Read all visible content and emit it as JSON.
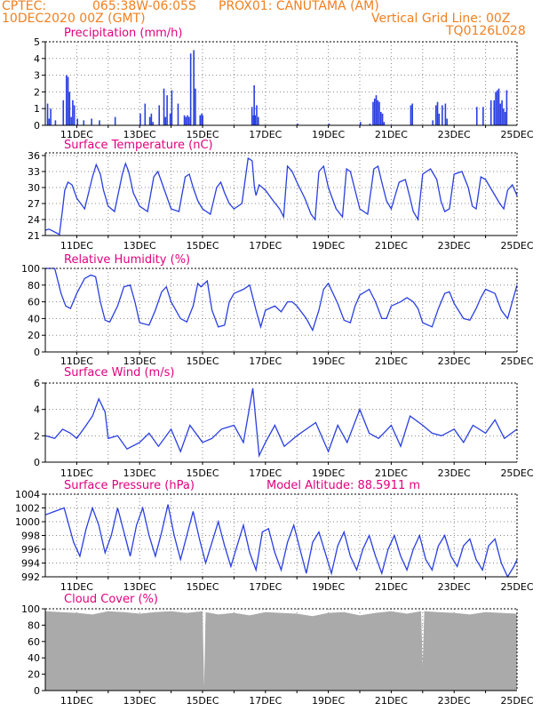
{
  "header": {
    "source": "CPTEC:",
    "coords": "065:38W-06:05S",
    "location": "PROX01: CANUTAMA (AM)",
    "date": "10DEC2020 00Z (GMT)",
    "grid_note": "Vertical Grid Line: 00Z",
    "model": "TQ0126L028"
  },
  "colors": {
    "title": "#e0007f",
    "header": "#f08020",
    "line": "#2a3fe0",
    "bars": "#2a3fe0",
    "cloud": "#aaaaaa"
  },
  "x_axis": {
    "start": "10DEC2020 00Z",
    "end": "25DEC2020 00Z",
    "tick_labels": [
      "11DEC",
      "13DEC",
      "15DEC",
      "17DEC",
      "19DEC",
      "21DEC",
      "23DEC",
      "25DEC"
    ],
    "tick_days": [
      1,
      3,
      5,
      7,
      9,
      11,
      13,
      15
    ],
    "vertical_grid": "00Z"
  },
  "chart_data": [
    {
      "type": "bar",
      "title": "Precipitation (mm/h)",
      "ylim": [
        0,
        5
      ],
      "yticks": [
        0,
        1,
        2,
        3,
        4,
        5
      ],
      "x": [
        0.05,
        0.1,
        0.15,
        0.3,
        0.55,
        0.65,
        0.7,
        0.75,
        0.8,
        0.85,
        0.9,
        1.0,
        1.2,
        1.45,
        1.7,
        2.2,
        3.0,
        3.15,
        3.3,
        3.35,
        3.4,
        3.6,
        3.75,
        3.8,
        3.85,
        3.95,
        4.0,
        4.2,
        4.4,
        4.45,
        4.5,
        4.55,
        4.6,
        4.7,
        4.75,
        4.9,
        4.95,
        4.98,
        6.55,
        6.6,
        6.62,
        6.65,
        6.7,
        6.75,
        8.0,
        9.0,
        10.0,
        10.3,
        10.4,
        10.45,
        10.5,
        10.55,
        10.6,
        10.65,
        10.7,
        10.75,
        11.6,
        11.65,
        12.3,
        12.4,
        12.45,
        12.5,
        12.6,
        12.7,
        12.75,
        13.7,
        13.9,
        14.15,
        14.25,
        14.3,
        14.35,
        14.4,
        14.45,
        14.5,
        14.55,
        14.6,
        14.65
      ],
      "values": [
        1.3,
        0.4,
        1.0,
        0.3,
        1.5,
        3.0,
        2.9,
        2.0,
        0.5,
        1.5,
        1.2,
        0.4,
        0.3,
        0.4,
        0.3,
        0.5,
        0.7,
        1.3,
        0.5,
        0.7,
        0.2,
        1.2,
        2.2,
        0.5,
        1.8,
        0.7,
        2.1,
        1.3,
        0.6,
        0.5,
        0.6,
        0.5,
        4.3,
        4.5,
        2.2,
        0.6,
        0.7,
        0.6,
        1.1,
        0.6,
        2.4,
        0.6,
        1.2,
        0.5,
        0.1,
        0.1,
        0.2,
        0.1,
        1.4,
        1.6,
        1.8,
        1.5,
        1.4,
        0.8,
        0.7,
        0.2,
        1.2,
        1.3,
        0.3,
        1.2,
        1.4,
        0.7,
        1.2,
        1.3,
        0.4,
        1.1,
        1.1,
        1.5,
        1.5,
        2.0,
        2.1,
        2.2,
        1.3,
        1.5,
        1.0,
        0.8,
        2.1
      ]
    },
    {
      "type": "line",
      "title": "Surface Temperature (nC)",
      "ylim": [
        21,
        36.5
      ],
      "yticks": [
        21,
        24,
        27,
        30,
        33,
        36
      ],
      "x": [
        0,
        0.12,
        0.25,
        0.35,
        0.45,
        0.55,
        0.62,
        0.72,
        0.85,
        1.0,
        1.25,
        1.5,
        1.62,
        1.75,
        1.85,
        2.0,
        2.2,
        2.45,
        2.55,
        2.65,
        2.8,
        3.0,
        3.25,
        3.45,
        3.58,
        3.7,
        3.85,
        4.0,
        4.25,
        4.45,
        4.58,
        4.7,
        4.85,
        5.0,
        5.25,
        5.45,
        5.58,
        5.7,
        5.85,
        6.0,
        6.25,
        6.45,
        6.58,
        6.65,
        6.7,
        6.8,
        7.0,
        7.25,
        7.45,
        7.58,
        7.7,
        7.85,
        8.0,
        8.25,
        8.45,
        8.58,
        8.7,
        8.85,
        9.0,
        9.25,
        9.45,
        9.58,
        9.7,
        9.85,
        10.0,
        10.25,
        10.45,
        10.58,
        10.7,
        10.85,
        11.0,
        11.25,
        11.45,
        11.58,
        11.7,
        11.85,
        12.0,
        12.25,
        12.45,
        12.58,
        12.7,
        12.85,
        13.0,
        13.25,
        13.45,
        13.58,
        13.7,
        13.85,
        14.0,
        14.25,
        14.45,
        14.58,
        14.7,
        14.85,
        15.0
      ],
      "values": [
        22.0,
        22.2,
        21.8,
        21.5,
        21.2,
        26.0,
        29.5,
        31.0,
        30.5,
        28.0,
        26.0,
        32.0,
        34.3,
        32.5,
        29.5,
        26.5,
        25.5,
        32.5,
        34.5,
        33.0,
        29.0,
        26.5,
        25.5,
        32.0,
        33.0,
        31.0,
        28.5,
        26.0,
        25.5,
        32.0,
        32.5,
        30.0,
        27.5,
        26.0,
        25.0,
        30.0,
        31.0,
        29.0,
        27.0,
        26.0,
        27.0,
        35.5,
        35.0,
        30.0,
        28.5,
        30.5,
        29.5,
        27.5,
        26.0,
        24.5,
        34.0,
        33.0,
        31.0,
        28.0,
        25.0,
        24.0,
        33.0,
        34.0,
        30.0,
        26.0,
        24.5,
        33.5,
        33.0,
        29.5,
        26.0,
        25.0,
        33.5,
        34.0,
        31.0,
        27.5,
        26.0,
        31.0,
        31.5,
        28.5,
        25.5,
        24.0,
        32.5,
        33.5,
        31.5,
        27.5,
        25.5,
        26.0,
        32.5,
        33.0,
        30.0,
        26.5,
        26.0,
        32.0,
        31.5,
        29.0,
        27.0,
        26.0,
        29.5,
        30.5,
        28.5
      ]
    },
    {
      "type": "line",
      "title": "Relative Humidity (%)",
      "ylim": [
        0,
        100
      ],
      "yticks": [
        0,
        20,
        40,
        60,
        80,
        100
      ],
      "x": [
        0,
        0.3,
        0.5,
        0.65,
        0.8,
        1.0,
        1.25,
        1.45,
        1.6,
        1.75,
        1.9,
        2.05,
        2.3,
        2.5,
        2.7,
        2.85,
        3.0,
        3.3,
        3.5,
        3.7,
        3.85,
        4.0,
        4.3,
        4.5,
        4.7,
        4.85,
        4.95,
        5.15,
        5.3,
        5.5,
        5.7,
        5.85,
        6.0,
        6.3,
        6.5,
        6.7,
        6.85,
        7.0,
        7.3,
        7.5,
        7.7,
        7.85,
        8.0,
        8.3,
        8.5,
        8.7,
        8.85,
        9.0,
        9.3,
        9.5,
        9.7,
        9.85,
        10.0,
        10.3,
        10.5,
        10.7,
        10.85,
        11.0,
        11.3,
        11.5,
        11.7,
        11.85,
        12.0,
        12.3,
        12.5,
        12.7,
        12.85,
        13.0,
        13.3,
        13.5,
        13.7,
        13.85,
        14.0,
        14.3,
        14.5,
        14.7,
        14.85,
        15.0
      ],
      "values": [
        100,
        100,
        70,
        55,
        52,
        70,
        88,
        92,
        90,
        60,
        38,
        36,
        55,
        78,
        80,
        60,
        35,
        32,
        50,
        72,
        78,
        60,
        40,
        36,
        55,
        82,
        78,
        85,
        50,
        30,
        32,
        60,
        70,
        75,
        80,
        50,
        30,
        50,
        55,
        48,
        60,
        60,
        55,
        40,
        26,
        50,
        75,
        82,
        58,
        38,
        35,
        55,
        68,
        75,
        60,
        40,
        40,
        55,
        60,
        65,
        60,
        52,
        35,
        30,
        52,
        70,
        72,
        58,
        40,
        38,
        52,
        65,
        75,
        70,
        50,
        40,
        60,
        80
      ]
    },
    {
      "type": "line",
      "title": "Surface Wind (m/s)",
      "ylim": [
        0,
        6
      ],
      "yticks": [
        0,
        2,
        4,
        6
      ],
      "x": [
        0,
        0.3,
        0.55,
        0.8,
        1.0,
        1.3,
        1.5,
        1.7,
        1.9,
        2.0,
        2.3,
        2.6,
        3.0,
        3.3,
        3.6,
        4.0,
        4.3,
        4.6,
        5.0,
        5.3,
        5.6,
        6.0,
        6.3,
        6.6,
        6.8,
        7.0,
        7.3,
        7.6,
        8.0,
        8.3,
        8.6,
        9.0,
        9.3,
        9.6,
        10.0,
        10.3,
        10.6,
        11.0,
        11.3,
        11.6,
        12.0,
        12.3,
        12.6,
        13.0,
        13.3,
        13.6,
        14.0,
        14.3,
        14.6,
        15.0
      ],
      "values": [
        2.0,
        1.8,
        2.5,
        2.2,
        1.8,
        2.8,
        3.5,
        4.8,
        3.8,
        1.8,
        2.0,
        1.0,
        1.5,
        2.2,
        1.2,
        2.5,
        0.8,
        2.8,
        1.5,
        1.8,
        2.5,
        2.8,
        1.5,
        5.6,
        0.5,
        1.5,
        2.8,
        1.2,
        2.0,
        2.5,
        3.0,
        0.8,
        2.8,
        1.5,
        4.0,
        2.2,
        1.8,
        2.8,
        1.2,
        3.5,
        2.8,
        2.2,
        2.0,
        2.5,
        1.5,
        2.8,
        2.2,
        3.2,
        1.8,
        2.5
      ]
    },
    {
      "type": "line",
      "title": "Surface Pressure (hPa)",
      "annotation": "Model Altitude: 88.5911 m",
      "ylim": [
        992,
        1004
      ],
      "yticks": [
        992,
        994,
        996,
        998,
        1000,
        1002,
        1004
      ],
      "x": [
        0,
        0.3,
        0.6,
        0.9,
        1.1,
        1.3,
        1.5,
        1.7,
        1.9,
        2.1,
        2.3,
        2.5,
        2.7,
        2.9,
        3.1,
        3.3,
        3.5,
        3.7,
        3.9,
        4.1,
        4.3,
        4.5,
        4.7,
        4.9,
        5.1,
        5.3,
        5.5,
        5.7,
        5.9,
        6.1,
        6.3,
        6.5,
        6.7,
        6.9,
        7.1,
        7.3,
        7.5,
        7.7,
        7.9,
        8.1,
        8.3,
        8.5,
        8.7,
        8.9,
        9.1,
        9.3,
        9.5,
        9.7,
        9.9,
        10.1,
        10.3,
        10.5,
        10.7,
        10.9,
        11.1,
        11.3,
        11.5,
        11.7,
        11.9,
        12.1,
        12.3,
        12.5,
        12.7,
        12.9,
        13.1,
        13.3,
        13.5,
        13.7,
        13.9,
        14.1,
        14.3,
        14.5,
        14.7,
        14.9,
        15.0
      ],
      "values": [
        1001.0,
        1001.5,
        1002.0,
        997.0,
        995.0,
        999.0,
        1002.0,
        999.5,
        995.5,
        998.0,
        1002.0,
        998.5,
        995.0,
        999.5,
        1002.0,
        998.0,
        995.0,
        998.5,
        1002.5,
        998.0,
        994.5,
        998.0,
        1001.5,
        997.5,
        994.0,
        997.0,
        1000.0,
        996.5,
        993.5,
        996.5,
        999.5,
        995.5,
        993.0,
        998.5,
        999.0,
        995.5,
        993.0,
        997.0,
        999.5,
        996.0,
        992.5,
        997.0,
        998.5,
        995.5,
        992.5,
        996.5,
        998.5,
        995.0,
        993.0,
        996.0,
        998.0,
        995.0,
        992.5,
        996.0,
        998.0,
        995.0,
        993.0,
        996.0,
        998.0,
        994.5,
        993.0,
        996.5,
        998.0,
        995.0,
        993.5,
        996.5,
        997.5,
        994.5,
        993.0,
        996.5,
        997.5,
        994.0,
        992.0,
        993.5,
        994.5
      ]
    },
    {
      "type": "area",
      "title": "Cloud Cover (%)",
      "ylim": [
        0,
        100
      ],
      "yticks": [
        0,
        20,
        40,
        60,
        80,
        100
      ],
      "x": [
        0,
        0.5,
        1,
        1.5,
        2,
        2.5,
        3,
        3.5,
        4,
        4.5,
        5,
        5.05,
        5.1,
        5.5,
        6,
        6.5,
        7,
        7.5,
        8,
        8.5,
        9,
        9.5,
        10,
        10.5,
        11,
        11.5,
        11.95,
        12.0,
        12.05,
        12.5,
        13,
        13.5,
        14,
        14.5,
        15
      ],
      "values": [
        97,
        96,
        95,
        93,
        97,
        96,
        94,
        96,
        97,
        95,
        97,
        5,
        96,
        93,
        95,
        92,
        96,
        95,
        94,
        91,
        95,
        96,
        92,
        95,
        97,
        94,
        97,
        30,
        97,
        96,
        95,
        93,
        96,
        95,
        94
      ]
    }
  ]
}
